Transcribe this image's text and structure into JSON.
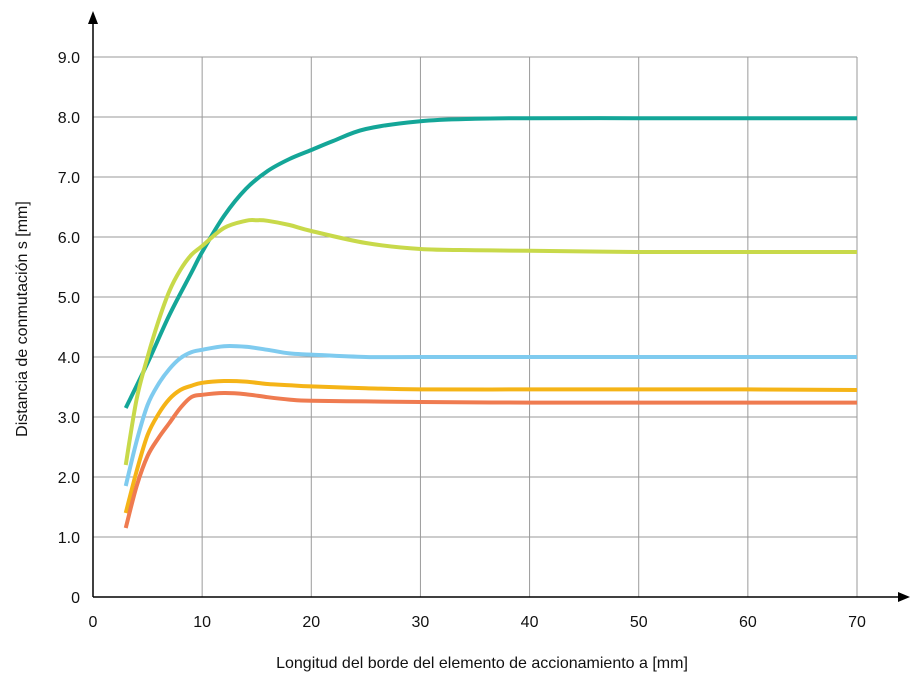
{
  "chart_data": {
    "type": "line",
    "xlabel": "Longitud del borde del elemento de accionamiento a [mm]",
    "ylabel": "Distancia de conmutación s [mm]",
    "xlim": [
      0,
      70
    ],
    "ylim": [
      0,
      9
    ],
    "xticks": [
      0,
      10,
      20,
      30,
      40,
      50,
      60,
      70
    ],
    "xtick_labels": [
      "0",
      "10",
      "20",
      "30",
      "40",
      "50",
      "60",
      "70"
    ],
    "yticks": [
      0,
      1,
      2,
      3,
      4,
      5,
      6,
      7,
      8,
      9
    ],
    "ytick_labels": [
      "0",
      "1.0",
      "2.0",
      "3.0",
      "4.0",
      "5.0",
      "6.0",
      "7.0",
      "8.0",
      "9.0"
    ],
    "grid": true,
    "series": [
      {
        "color": "#14a698",
        "x": [
          3,
          5,
          7,
          9,
          10,
          12,
          14,
          16,
          18,
          20,
          22,
          25,
          30,
          35,
          40,
          50,
          60,
          70
        ],
        "y": [
          3.15,
          3.9,
          4.7,
          5.4,
          5.75,
          6.35,
          6.8,
          7.1,
          7.3,
          7.45,
          7.6,
          7.8,
          7.93,
          7.97,
          7.98,
          7.98,
          7.98,
          7.98
        ]
      },
      {
        "color": "#c8d94a",
        "x": [
          3,
          4,
          5,
          6,
          7,
          8,
          9,
          10,
          12,
          14,
          15,
          16,
          18,
          20,
          25,
          30,
          35,
          40,
          50,
          60,
          70
        ],
        "y": [
          2.2,
          3.3,
          4.0,
          4.6,
          5.1,
          5.45,
          5.7,
          5.85,
          6.15,
          6.27,
          6.28,
          6.27,
          6.2,
          6.1,
          5.9,
          5.8,
          5.78,
          5.77,
          5.75,
          5.75,
          5.75
        ]
      },
      {
        "color": "#7fcbef",
        "x": [
          3,
          4,
          5,
          6,
          7,
          8,
          9,
          10,
          12,
          14,
          16,
          18,
          20,
          25,
          30,
          40,
          50,
          60,
          70
        ],
        "y": [
          1.85,
          2.6,
          3.2,
          3.55,
          3.8,
          3.98,
          4.08,
          4.12,
          4.18,
          4.17,
          4.12,
          4.06,
          4.04,
          4.0,
          4.0,
          4.0,
          4.0,
          4.0,
          4.0
        ]
      },
      {
        "color": "#f5b417",
        "x": [
          3,
          4,
          5,
          6,
          7,
          8,
          9,
          10,
          12,
          14,
          16,
          18,
          20,
          25,
          30,
          40,
          50,
          60,
          70
        ],
        "y": [
          1.4,
          2.1,
          2.7,
          3.05,
          3.3,
          3.45,
          3.52,
          3.57,
          3.6,
          3.59,
          3.55,
          3.53,
          3.51,
          3.48,
          3.46,
          3.46,
          3.46,
          3.46,
          3.45
        ]
      },
      {
        "color": "#ef7b50",
        "x": [
          3,
          4,
          5,
          6,
          7,
          8,
          9,
          10,
          12,
          14,
          16,
          18,
          20,
          25,
          30,
          40,
          50,
          60,
          70
        ],
        "y": [
          1.15,
          1.85,
          2.35,
          2.65,
          2.9,
          3.15,
          3.33,
          3.37,
          3.4,
          3.38,
          3.33,
          3.29,
          3.27,
          3.26,
          3.25,
          3.24,
          3.24,
          3.24,
          3.24
        ]
      }
    ]
  }
}
